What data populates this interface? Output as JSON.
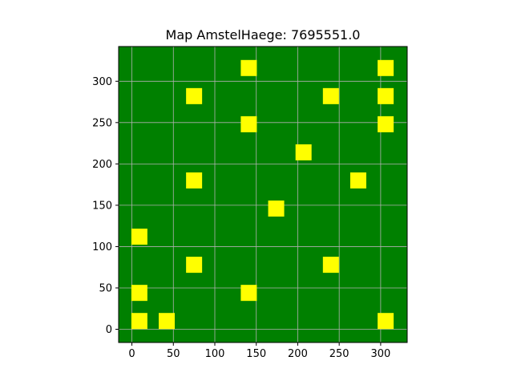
{
  "chart_data": {
    "type": "scatter",
    "title": "Map AmstelHaege: 7695551.0",
    "xlabel": "",
    "ylabel": "",
    "xlim": [
      -16,
      332
    ],
    "ylim": [
      -16,
      342
    ],
    "x_ticks": [
      0,
      50,
      100,
      150,
      200,
      250,
      300
    ],
    "y_ticks": [
      0,
      50,
      100,
      150,
      200,
      250,
      300
    ],
    "grid": true,
    "background_color": "#008000",
    "marker_color": "#ffff00",
    "marker_shape": "square",
    "marker_size": 20,
    "points": [
      {
        "x": 141,
        "y": 316
      },
      {
        "x": 306,
        "y": 316
      },
      {
        "x": 75,
        "y": 282
      },
      {
        "x": 240,
        "y": 282
      },
      {
        "x": 306,
        "y": 282
      },
      {
        "x": 141,
        "y": 248
      },
      {
        "x": 306,
        "y": 248
      },
      {
        "x": 207,
        "y": 214
      },
      {
        "x": 75,
        "y": 180
      },
      {
        "x": 273,
        "y": 180
      },
      {
        "x": 174,
        "y": 146
      },
      {
        "x": 9,
        "y": 112
      },
      {
        "x": 75,
        "y": 78
      },
      {
        "x": 240,
        "y": 78
      },
      {
        "x": 9,
        "y": 44
      },
      {
        "x": 141,
        "y": 44
      },
      {
        "x": 9,
        "y": 10
      },
      {
        "x": 42,
        "y": 10
      },
      {
        "x": 306,
        "y": 10
      }
    ]
  }
}
